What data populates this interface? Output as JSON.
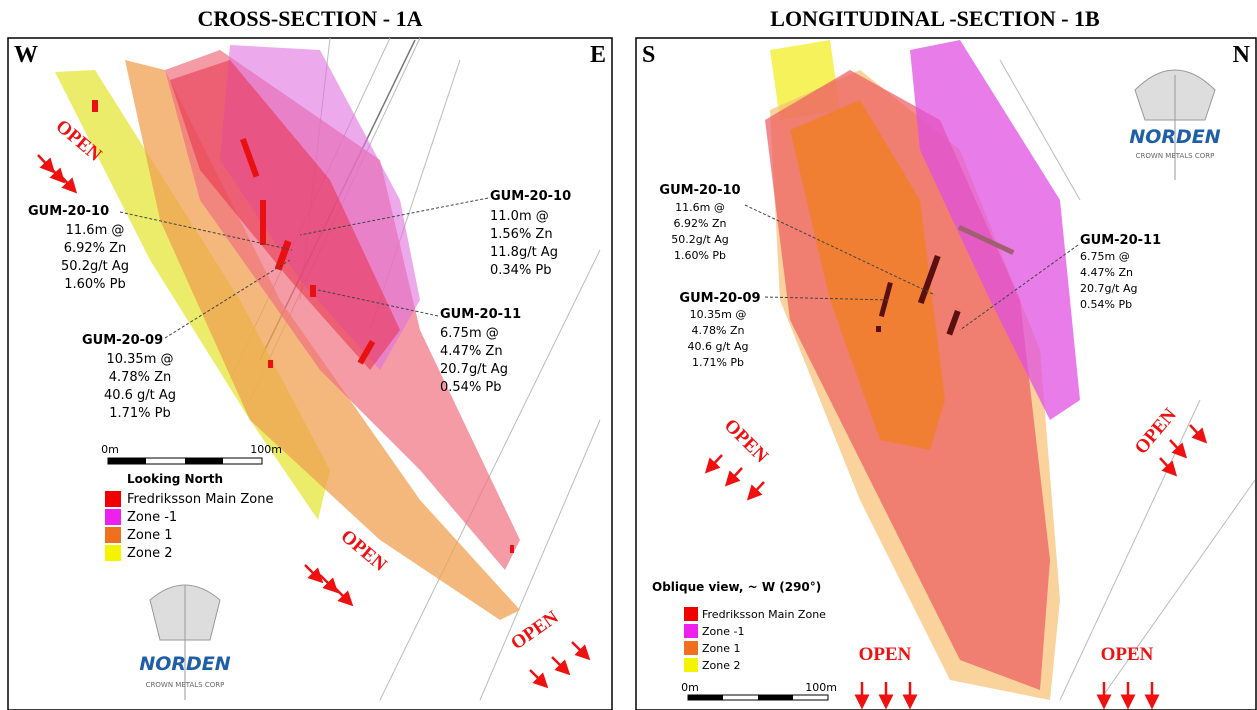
{
  "panels": [
    {
      "title": "CROSS-SECTION - 1A",
      "left_direction": "W",
      "right_direction": "E",
      "annotations": [
        {
          "hole": "GUM-20-10",
          "lines": [
            "11.6m @",
            "6.92% Zn",
            "50.2g/t Ag",
            "1.60% Pb"
          ]
        },
        {
          "hole": "GUM-20-10",
          "lines": [
            "11.0m @",
            "1.56% Zn",
            "11.8g/t Ag",
            "0.34% Pb"
          ]
        },
        {
          "hole": "GUM-20-11",
          "lines": [
            "6.75m @",
            "4.47% Zn",
            "20.7g/t Ag",
            "0.54% Pb"
          ]
        },
        {
          "hole": "GUM-20-09",
          "lines": [
            "10.35m @",
            "4.78% Zn",
            "40.6 g/t Ag",
            "1.71% Pb"
          ]
        }
      ],
      "open_labels": [
        "OPEN",
        "OPEN",
        "OPEN"
      ],
      "scale": {
        "start": "0m",
        "end": "100m"
      },
      "view": "Looking North",
      "legend": [
        "Fredriksson Main Zone",
        "Zone -1",
        "Zone 1",
        "Zone 2"
      ],
      "logo": {
        "name": "NORDEN",
        "subtitle": "CROWN METALS CORP"
      }
    },
    {
      "title": "LONGITUDINAL -SECTION - 1B",
      "left_direction": "S",
      "right_direction": "N",
      "annotations": [
        {
          "hole": "GUM-20-10",
          "lines": [
            "11.6m @",
            "6.92% Zn",
            "50.2g/t Ag",
            "1.60% Pb"
          ]
        },
        {
          "hole": "GUM-20-09",
          "lines": [
            "10.35m @",
            "4.78% Zn",
            "40.6 g/t Ag",
            "1.71% Pb"
          ]
        },
        {
          "hole": "GUM-20-11",
          "lines": [
            "6.75m @",
            "4.47% Zn",
            "20.7g/t Ag",
            "0.54% Pb"
          ]
        }
      ],
      "open_labels": [
        "OPEN",
        "OPEN",
        "OPEN",
        "OPEN"
      ],
      "scale": {
        "start": "0m",
        "end": "100m"
      },
      "view": "Oblique view, ~ W (290°)",
      "legend": [
        "Fredriksson Main Zone",
        "Zone -1",
        "Zone 1",
        "Zone 2"
      ],
      "logo": {
        "name": "NORDEN",
        "subtitle": "CROWN METALS CORP"
      }
    }
  ]
}
